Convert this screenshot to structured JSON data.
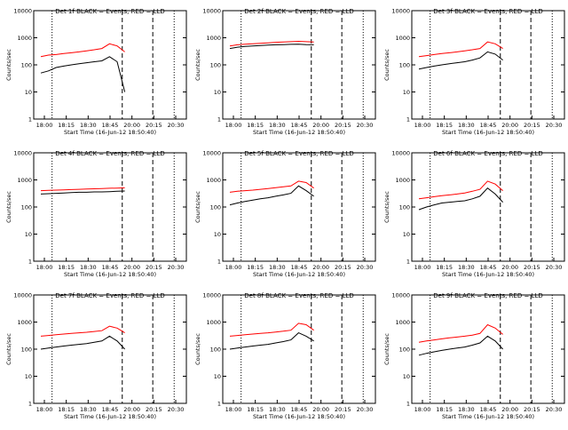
{
  "colors": {
    "events": "#000000",
    "lld": "#ff0000",
    "axis": "#000000"
  },
  "chart_data": [
    {
      "type": "line",
      "title": "Det 1f BLACK = Events, RED = LLD",
      "xlabel": "Start Time (16-Jun-12 18:50:40)",
      "ylabel": "Counts/sec",
      "yscale": "log",
      "ylim": [
        1,
        10000
      ],
      "x_ticks": [
        "18:00",
        "18:15",
        "18:30",
        "18:45",
        "20:00",
        "20:15",
        "20:30"
      ],
      "y_ticks": [
        "1",
        "10",
        "100",
        "1000",
        "10000"
      ],
      "legend": "title",
      "series": [
        {
          "color": "#000000",
          "values": [
            50,
            60,
            80,
            90,
            100,
            110,
            120,
            130,
            140,
            200,
            130,
            10
          ]
        },
        {
          "color": "#ff0000",
          "values": [
            200,
            230,
            240,
            260,
            280,
            300,
            330,
            360,
            400,
            600,
            500,
            300
          ]
        }
      ]
    },
    {
      "type": "line",
      "title": "Det 2f BLACK = Events, RED = LLD",
      "xlabel": "Start Time (16-Jun-12 18:50:40)",
      "ylabel": "Counts/sec",
      "yscale": "log",
      "ylim": [
        1,
        10000
      ],
      "x_ticks": [
        "18:00",
        "18:15",
        "18:30",
        "18:45",
        "20:00",
        "20:15",
        "20:30"
      ],
      "y_ticks": [
        "1",
        "10",
        "100",
        "1000",
        "10000"
      ],
      "legend": "title",
      "series": [
        {
          "color": "#000000",
          "values": [
            400,
            450,
            480,
            500,
            520,
            540,
            550,
            560,
            570,
            580,
            560,
            550
          ]
        },
        {
          "color": "#ff0000",
          "values": [
            500,
            550,
            580,
            600,
            620,
            650,
            680,
            700,
            720,
            740,
            720,
            700
          ]
        }
      ]
    },
    {
      "type": "line",
      "title": "Det 3f BLACK = Events, RED = LLD",
      "xlabel": "Start Time (16-Jun-12 18:50:40)",
      "ylabel": "Counts/sec",
      "yscale": "log",
      "ylim": [
        1,
        10000
      ],
      "x_ticks": [
        "18:00",
        "18:15",
        "18:30",
        "18:45",
        "20:00",
        "20:15",
        "20:30"
      ],
      "y_ticks": [
        "1",
        "10",
        "100",
        "1000",
        "10000"
      ],
      "legend": "title",
      "series": [
        {
          "color": "#000000",
          "values": [
            70,
            80,
            90,
            100,
            110,
            120,
            130,
            150,
            180,
            300,
            250,
            150
          ]
        },
        {
          "color": "#ff0000",
          "values": [
            200,
            220,
            240,
            260,
            280,
            300,
            330,
            360,
            400,
            700,
            600,
            400
          ]
        }
      ]
    },
    {
      "type": "line",
      "title": "Det 4f BLACK = Events, RED = LLD",
      "xlabel": "Start Time (16-Jun-12 18:50:40)",
      "ylabel": "Counts/sec",
      "yscale": "log",
      "ylim": [
        1,
        10000
      ],
      "x_ticks": [
        "18:00",
        "18:15",
        "18:30",
        "18:45",
        "20:00",
        "20:15",
        "20:30"
      ],
      "y_ticks": [
        "1",
        "10",
        "100",
        "1000",
        "10000"
      ],
      "legend": "title",
      "series": [
        {
          "color": "#000000",
          "values": [
            300,
            310,
            320,
            330,
            340,
            350,
            350,
            360,
            360,
            370,
            380,
            390
          ]
        },
        {
          "color": "#ff0000",
          "values": [
            400,
            410,
            420,
            430,
            440,
            450,
            460,
            470,
            480,
            490,
            500,
            510
          ]
        }
      ]
    },
    {
      "type": "line",
      "title": "Det 5f BLACK = Events, RED = LLD",
      "xlabel": "Start Time (16-Jun-12 18:50:40)",
      "ylabel": "Counts/sec",
      "yscale": "log",
      "ylim": [
        1,
        10000
      ],
      "x_ticks": [
        "18:00",
        "18:15",
        "18:30",
        "18:45",
        "20:00",
        "20:15",
        "20:30"
      ],
      "y_ticks": [
        "1",
        "10",
        "100",
        "1000",
        "10000"
      ],
      "legend": "title",
      "series": [
        {
          "color": "#000000",
          "values": [
            120,
            140,
            160,
            180,
            200,
            220,
            250,
            280,
            320,
            600,
            400,
            250
          ]
        },
        {
          "color": "#ff0000",
          "values": [
            350,
            380,
            400,
            420,
            450,
            480,
            520,
            560,
            600,
            900,
            800,
            500
          ]
        }
      ]
    },
    {
      "type": "line",
      "title": "Det 6f BLACK = Events, RED = LLD",
      "xlabel": "Start Time (16-Jun-12 18:50:40)",
      "ylabel": "Counts/sec",
      "yscale": "log",
      "ylim": [
        1,
        10000
      ],
      "x_ticks": [
        "18:00",
        "18:15",
        "18:30",
        "18:45",
        "20:00",
        "20:15",
        "20:30"
      ],
      "y_ticks": [
        "1",
        "10",
        "100",
        "1000",
        "10000"
      ],
      "legend": "title",
      "series": [
        {
          "color": "#000000",
          "values": [
            80,
            100,
            120,
            140,
            150,
            160,
            170,
            200,
            250,
            500,
            300,
            150
          ]
        },
        {
          "color": "#ff0000",
          "values": [
            200,
            220,
            240,
            260,
            280,
            300,
            330,
            380,
            450,
            900,
            700,
            400
          ]
        }
      ]
    },
    {
      "type": "line",
      "title": "Det 7f BLACK = Events, RED = LLD",
      "xlabel": "Start Time (16-Jun-12 18:50:40)",
      "ylabel": "Counts/sec",
      "yscale": "log",
      "ylim": [
        1,
        10000
      ],
      "x_ticks": [
        "18:00",
        "18:15",
        "18:30",
        "18:45",
        "20:00",
        "20:15",
        "20:30"
      ],
      "y_ticks": [
        "1",
        "10",
        "100",
        "1000",
        "10000"
      ],
      "legend": "title",
      "series": [
        {
          "color": "#000000",
          "values": [
            100,
            110,
            120,
            130,
            140,
            150,
            160,
            180,
            200,
            300,
            200,
            100
          ]
        },
        {
          "color": "#ff0000",
          "values": [
            300,
            320,
            340,
            360,
            380,
            400,
            420,
            450,
            480,
            700,
            600,
            400
          ]
        }
      ]
    },
    {
      "type": "line",
      "title": "Det 8f BLACK = Events, RED = LLD",
      "xlabel": "Start Time (16-Jun-12 18:50:40)",
      "ylabel": "Counts/sec",
      "yscale": "log",
      "ylim": [
        1,
        10000
      ],
      "x_ticks": [
        "18:00",
        "18:15",
        "18:30",
        "18:45",
        "20:00",
        "20:15",
        "20:30"
      ],
      "y_ticks": [
        "1",
        "10",
        "100",
        "1000",
        "10000"
      ],
      "legend": "title",
      "series": [
        {
          "color": "#000000",
          "values": [
            100,
            110,
            120,
            130,
            140,
            150,
            170,
            190,
            220,
            400,
            300,
            200
          ]
        },
        {
          "color": "#ff0000",
          "values": [
            300,
            320,
            340,
            360,
            380,
            400,
            430,
            460,
            500,
            900,
            800,
            500
          ]
        }
      ]
    },
    {
      "type": "line",
      "title": "Det 9f BLACK = Events, RED = LLD",
      "xlabel": "Start Time (16-Jun-12 18:50:40)",
      "ylabel": "Counts/sec",
      "yscale": "log",
      "ylim": [
        1,
        10000
      ],
      "x_ticks": [
        "18:00",
        "18:15",
        "18:30",
        "18:45",
        "20:00",
        "20:15",
        "20:30"
      ],
      "y_ticks": [
        "1",
        "10",
        "100",
        "1000",
        "10000"
      ],
      "legend": "title",
      "series": [
        {
          "color": "#000000",
          "values": [
            60,
            70,
            80,
            90,
            100,
            110,
            120,
            140,
            170,
            300,
            200,
            100
          ]
        },
        {
          "color": "#ff0000",
          "values": [
            180,
            200,
            220,
            240,
            260,
            280,
            300,
            330,
            380,
            800,
            600,
            350
          ]
        }
      ]
    }
  ]
}
